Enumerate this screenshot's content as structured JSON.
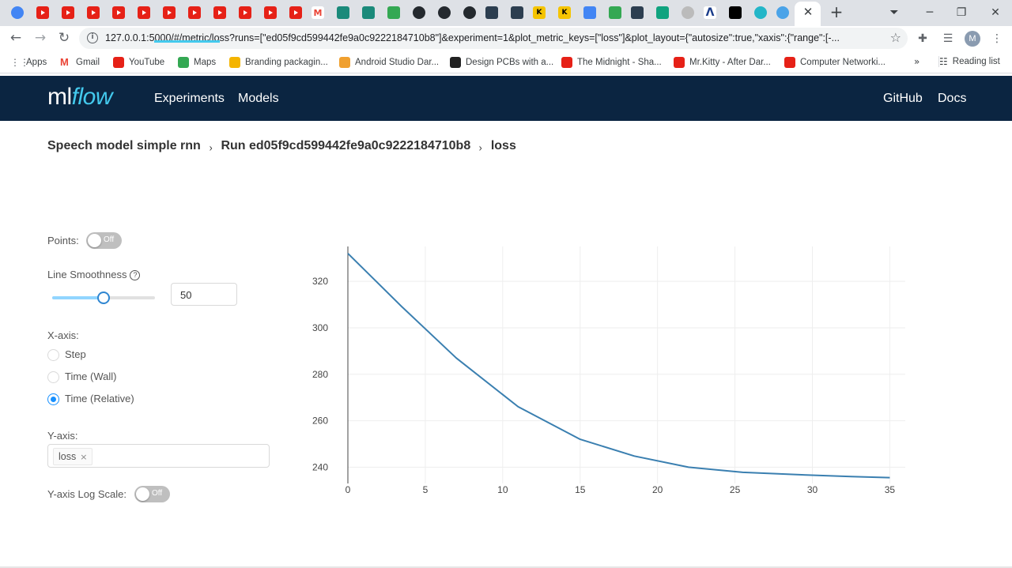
{
  "browser": {
    "url": "127.0.0.1:5000/#/metric/loss?runs=[\"ed05f9cd599442fe9a0c9222184710b8\"]&experiment=1&plot_metric_keys=[\"loss\"]&plot_layout={\"autosize\":true,\"xaxis\":{\"range\":[-...",
    "profile_initial": "M",
    "bookmarks": [
      {
        "label": "Apps",
        "color": "#5f6368"
      },
      {
        "label": "Gmail",
        "color": "#ea4335"
      },
      {
        "label": "YouTube",
        "color": "#e62117"
      },
      {
        "label": "Maps",
        "color": "#34a853"
      },
      {
        "label": "Branding packagin...",
        "color": "#f4b400"
      },
      {
        "label": "Android Studio Dar...",
        "color": "#f0a030"
      },
      {
        "label": "Design PCBs with a...",
        "color": "#222222"
      },
      {
        "label": "The Midnight - Sha...",
        "color": "#e62117"
      },
      {
        "label": "Mr.Kitty - After Dar...",
        "color": "#e62117"
      },
      {
        "label": "Computer Networki...",
        "color": "#e62117"
      }
    ],
    "bookmarks_more": "»",
    "reading_list": "Reading list"
  },
  "header": {
    "logo_ml": "ml",
    "logo_flow": "flow",
    "nav": {
      "experiments": "Experiments",
      "models": "Models",
      "github": "GitHub",
      "docs": "Docs"
    }
  },
  "breadcrumb": {
    "experiment": "Speech model simple rnn",
    "run": "Run ed05f9cd599442fe9a0c9222184710b8",
    "metric": "loss",
    "separator": "›"
  },
  "controls": {
    "points": {
      "label": "Points:",
      "state": "Off"
    },
    "smoothness": {
      "label": "Line Smoothness",
      "help": "?",
      "value": "50",
      "fraction": 0.5
    },
    "xaxis": {
      "label": "X-axis:",
      "options": [
        "Step",
        "Time (Wall)",
        "Time (Relative)"
      ],
      "selected": "Time (Relative)"
    },
    "yaxis": {
      "label": "Y-axis:",
      "tag": "loss",
      "remove": "×"
    },
    "logscale": {
      "label": "Y-axis Log Scale:",
      "state": "Off"
    }
  },
  "chart_data": {
    "type": "line",
    "title": "",
    "xlabel": "",
    "ylabel": "",
    "xlim": [
      0,
      36
    ],
    "ylim": [
      233,
      335
    ],
    "xticks": [
      0,
      5,
      10,
      15,
      20,
      25,
      30,
      35
    ],
    "yticks": [
      240,
      260,
      280,
      300,
      320
    ],
    "grid": true,
    "line_color": "#3a7fb0",
    "series": [
      {
        "x": [
          0,
          3.5,
          7,
          11,
          15,
          18.5,
          22,
          25.5,
          29,
          32.5,
          35
        ],
        "y": [
          332,
          309,
          287,
          266,
          252,
          244.8,
          240,
          237.8,
          236.8,
          236.0,
          235.5
        ]
      }
    ]
  }
}
